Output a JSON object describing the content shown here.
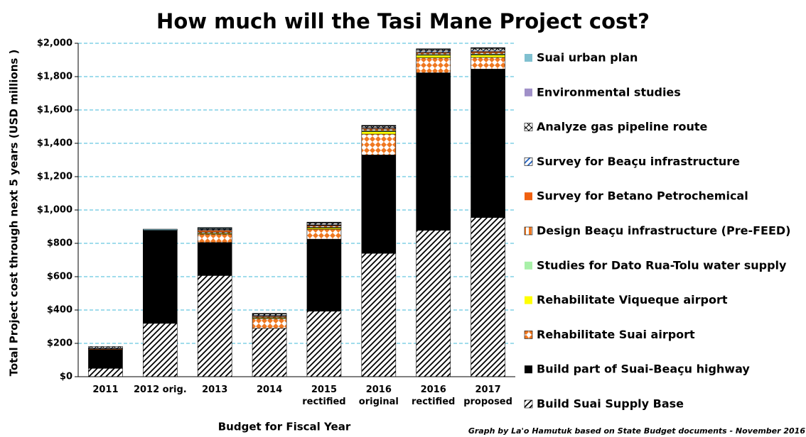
{
  "chart_data": {
    "type": "stacked_bar",
    "title": "How much will the Tasi Mane Project cost?",
    "y_label": "Total Project cost through next 5 years (USD millions )",
    "x_label": "Budget for Fiscal Year",
    "footnote": "Graph by La'o Hamutuk based on State Budget documents - November 2016",
    "categories": [
      "2011",
      "2012 orig.",
      "2013",
      "2014",
      "2015\nrectified",
      "2016\noriginal",
      "2016\nrectified",
      "2017\nproposed"
    ],
    "ylim": [
      0,
      2000
    ],
    "yticks": [
      {
        "value": 0,
        "label": "$0"
      },
      {
        "value": 200,
        "label": "$200"
      },
      {
        "value": 400,
        "label": "$400"
      },
      {
        "value": 600,
        "label": "$600"
      },
      {
        "value": 800,
        "label": "$800"
      },
      {
        "value": 1000,
        "label": "$1,000"
      },
      {
        "value": 1200,
        "label": "$1,200"
      },
      {
        "value": 1400,
        "label": "$1,400"
      },
      {
        "value": 1600,
        "label": "$1,600"
      },
      {
        "value": 1800,
        "label": "$1,800"
      },
      {
        "value": 2000,
        "label": "$2,000"
      }
    ],
    "grid": true,
    "legend": "right",
    "series": [
      {
        "name": "Build Suai Supply Base",
        "color": "#000000",
        "pattern": "diagonal",
        "values": [
          50,
          320,
          607,
          290,
          393,
          740,
          878,
          955
        ]
      },
      {
        "name": "Build part of Suai-Beaçu highway",
        "color": "#000000",
        "pattern": "solid",
        "values": [
          113,
          558,
          198,
          0,
          432,
          590,
          945,
          890
        ]
      },
      {
        "name": "Rehabilitate Suai airport",
        "color": "#f07820",
        "pattern": "diamond",
        "values": [
          0,
          0,
          50,
          58,
          60,
          125,
          90,
          70
        ]
      },
      {
        "name": "Rehabilitate Viqueque airport",
        "color": "#ffff00",
        "pattern": "solid",
        "values": [
          0,
          0,
          5,
          5,
          8,
          15,
          15,
          15
        ]
      },
      {
        "name": "Studies for Dato Rua-Tolu water supply",
        "color": "#a8f0a8",
        "pattern": "solid",
        "values": [
          0,
          0,
          0,
          0,
          3,
          5,
          5,
          5
        ]
      },
      {
        "name": "Design Beaçu infrastructure (Pre-FEED)",
        "color": "#f07820",
        "pattern": "vertical",
        "values": [
          0,
          0,
          8,
          5,
          8,
          10,
          8,
          8
        ]
      },
      {
        "name": "Survey for Betano Petrochemical",
        "color": "#f06010",
        "pattern": "solid",
        "values": [
          5,
          0,
          10,
          5,
          5,
          5,
          5,
          8
        ]
      },
      {
        "name": "Survey for Beaçu infrastructure",
        "color": "#2060c0",
        "pattern": "diagonal",
        "values": [
          5,
          0,
          5,
          5,
          5,
          5,
          8,
          8
        ]
      },
      {
        "name": "Analyze gas pipeline route",
        "color": "#000000",
        "pattern": "cross",
        "values": [
          8,
          0,
          5,
          8,
          8,
          8,
          8,
          10
        ]
      },
      {
        "name": "Environmental studies",
        "color": "#a090c8",
        "pattern": "solid",
        "values": [
          0,
          0,
          3,
          2,
          3,
          3,
          3,
          3
        ]
      },
      {
        "name": "Suai urban plan",
        "color": "#80c0d0",
        "pattern": "solid",
        "values": [
          0,
          7,
          4,
          2,
          2,
          2,
          2,
          2
        ]
      }
    ]
  }
}
